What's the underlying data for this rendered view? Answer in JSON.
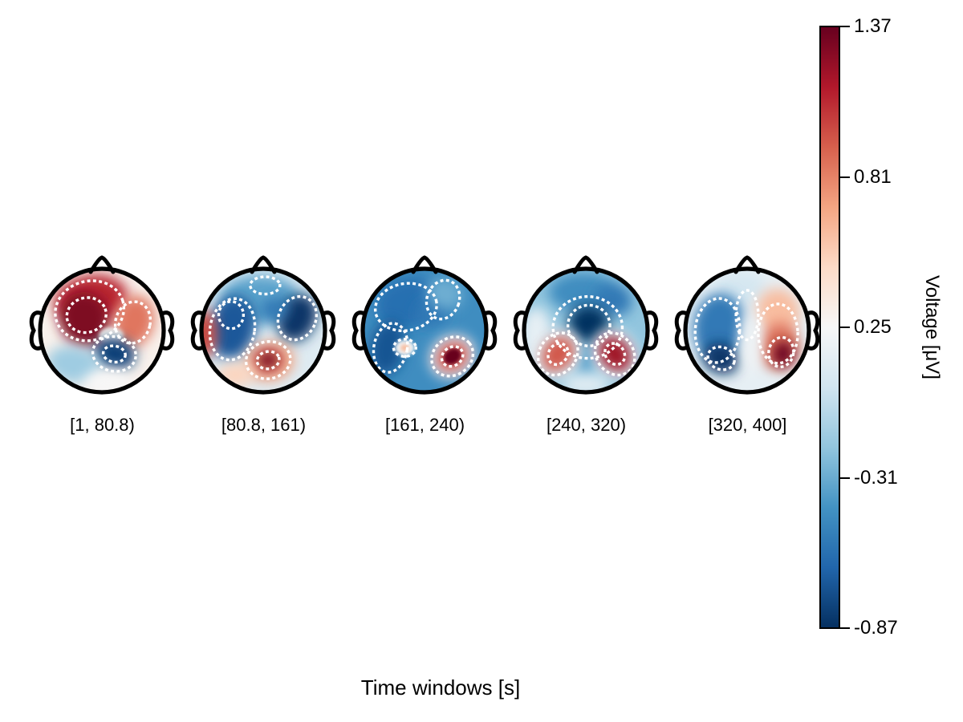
{
  "chart_data": {
    "type": "heatmap",
    "subtype": "eeg-topomap-time-windows",
    "xlabel": "Time windows [s]",
    "colorbar_label": "Voltage [μV]",
    "categories": [
      "[1, 80.8)",
      "[80.8, 161)",
      "[161, 240)",
      "[240, 320)",
      "[320, 400]"
    ],
    "value_range": [
      -0.87,
      1.37
    ],
    "colorbar_ticks": [
      "1.37",
      "0.81",
      "0.25",
      "-0.31",
      "-0.87"
    ],
    "colormap_name": "RdBu_r",
    "colormap_stops_low_to_high": [
      "#053061",
      "#2166ac",
      "#4393c3",
      "#92c5de",
      "#d1e5f0",
      "#f7f7f7",
      "#fddbc7",
      "#f4a582",
      "#d6604d",
      "#b2182b",
      "#67001f"
    ],
    "maps": [
      {
        "label": "[1, 80.8)",
        "base": 0.3,
        "blobs": [
          {
            "x": -0.18,
            "y": -0.5,
            "rx": 0.6,
            "ry": 0.4,
            "rot": -10,
            "v": 1.1
          },
          {
            "x": -0.28,
            "y": -0.18,
            "rx": 0.4,
            "ry": 0.45,
            "rot": -15,
            "v": 1.3
          },
          {
            "x": 0.52,
            "y": -0.15,
            "rx": 0.32,
            "ry": 0.42,
            "rot": 15,
            "v": 0.85
          },
          {
            "x": 0.15,
            "y": 0.08,
            "rx": 0.2,
            "ry": 0.13,
            "rot": 0,
            "v": 0.3
          },
          {
            "x": 0.2,
            "y": 0.38,
            "rx": 0.34,
            "ry": 0.26,
            "rot": 10,
            "v": -0.8
          },
          {
            "x": -0.45,
            "y": 0.55,
            "rx": 0.45,
            "ry": 0.3,
            "rot": 10,
            "v": -0.15
          },
          {
            "x": 0.1,
            "y": 0.85,
            "rx": 0.4,
            "ry": 0.22,
            "rot": 0,
            "v": 0.25
          }
        ],
        "contours": [
          {
            "x": -0.2,
            "y": -0.32,
            "rx": 0.56,
            "ry": 0.48,
            "rot": -15
          },
          {
            "x": -0.25,
            "y": -0.25,
            "rx": 0.32,
            "ry": 0.28,
            "rot": -15
          },
          {
            "x": 0.5,
            "y": -0.13,
            "rx": 0.28,
            "ry": 0.34,
            "rot": 15
          },
          {
            "x": 0.2,
            "y": 0.38,
            "rx": 0.35,
            "ry": 0.28,
            "rot": 10
          },
          {
            "x": 0.2,
            "y": 0.38,
            "rx": 0.18,
            "ry": 0.13,
            "rot": 10
          }
        ]
      },
      {
        "label": "[80.8, 161)",
        "base": 0.1,
        "blobs": [
          {
            "x": -0.05,
            "y": -0.5,
            "rx": 0.65,
            "ry": 0.4,
            "rot": 0,
            "v": -0.35
          },
          {
            "x": -0.5,
            "y": -0.05,
            "rx": 0.38,
            "ry": 0.52,
            "rot": 10,
            "v": -0.7
          },
          {
            "x": 0.55,
            "y": -0.2,
            "rx": 0.3,
            "ry": 0.4,
            "rot": 25,
            "v": -0.85
          },
          {
            "x": 0.18,
            "y": -0.35,
            "rx": 0.22,
            "ry": 0.18,
            "rot": 0,
            "v": -0.55
          },
          {
            "x": -0.95,
            "y": 0.05,
            "rx": 0.2,
            "ry": 0.38,
            "rot": 0,
            "v": 1.0
          },
          {
            "x": 0.1,
            "y": 0.5,
            "rx": 0.4,
            "ry": 0.32,
            "rot": -10,
            "v": 0.7
          },
          {
            "x": 0.08,
            "y": 0.48,
            "rx": 0.2,
            "ry": 0.16,
            "rot": -10,
            "v": 1.3
          },
          {
            "x": -0.45,
            "y": 0.72,
            "rx": 0.3,
            "ry": 0.2,
            "rot": 0,
            "v": 0.5
          }
        ],
        "contours": [
          {
            "x": -0.5,
            "y": -0.02,
            "rx": 0.36,
            "ry": 0.5,
            "rot": 10
          },
          {
            "x": -0.52,
            "y": -0.25,
            "rx": 0.2,
            "ry": 0.22,
            "rot": 0
          },
          {
            "x": 0.55,
            "y": -0.2,
            "rx": 0.3,
            "ry": 0.36,
            "rot": 25
          },
          {
            "x": 0.08,
            "y": 0.48,
            "rx": 0.36,
            "ry": 0.3,
            "rot": -10
          },
          {
            "x": 0.08,
            "y": 0.48,
            "rx": 0.18,
            "ry": 0.14,
            "rot": -10
          },
          {
            "x": 0.03,
            "y": -0.73,
            "rx": 0.24,
            "ry": 0.14,
            "rot": 0
          }
        ]
      },
      {
        "label": "[161, 240)",
        "base": -0.45,
        "blobs": [
          {
            "x": -0.25,
            "y": -0.45,
            "rx": 0.55,
            "ry": 0.4,
            "rot": -10,
            "v": -0.6
          },
          {
            "x": -0.6,
            "y": 0.28,
            "rx": 0.28,
            "ry": 0.45,
            "rot": 10,
            "v": -0.72
          },
          {
            "x": 0.12,
            "y": -0.28,
            "rx": 0.26,
            "ry": 0.2,
            "rot": 0,
            "v": -0.55
          },
          {
            "x": 0.33,
            "y": -0.6,
            "rx": 0.3,
            "ry": 0.25,
            "rot": 20,
            "v": -0.3
          },
          {
            "x": 0.45,
            "y": 0.42,
            "rx": 0.38,
            "ry": 0.33,
            "rot": -35,
            "v": 0.2
          },
          {
            "x": 0.45,
            "y": 0.42,
            "rx": 0.27,
            "ry": 0.22,
            "rot": -35,
            "v": 1.0
          },
          {
            "x": 0.45,
            "y": 0.42,
            "rx": 0.15,
            "ry": 0.12,
            "rot": -35,
            "v": 1.37
          },
          {
            "x": -0.32,
            "y": 0.28,
            "rx": 0.16,
            "ry": 0.13,
            "rot": 0,
            "v": 0.2
          },
          {
            "x": -0.32,
            "y": 0.28,
            "rx": 0.07,
            "ry": 0.06,
            "rot": 0,
            "v": 0.6
          }
        ],
        "contours": [
          {
            "x": -0.3,
            "y": -0.38,
            "rx": 0.5,
            "ry": 0.38,
            "rot": -10
          },
          {
            "x": -0.55,
            "y": 0.28,
            "rx": 0.27,
            "ry": 0.4,
            "rot": 10
          },
          {
            "x": 0.45,
            "y": 0.42,
            "rx": 0.35,
            "ry": 0.3,
            "rot": -35
          },
          {
            "x": 0.45,
            "y": 0.42,
            "rx": 0.18,
            "ry": 0.15,
            "rot": -35
          },
          {
            "x": -0.32,
            "y": 0.28,
            "rx": 0.18,
            "ry": 0.14,
            "rot": 0
          },
          {
            "x": 0.3,
            "y": -0.5,
            "rx": 0.26,
            "ry": 0.32,
            "rot": 20
          }
        ]
      },
      {
        "label": "[240, 320)",
        "base": -0.2,
        "blobs": [
          {
            "x": -0.05,
            "y": -0.62,
            "rx": 0.55,
            "ry": 0.32,
            "rot": 0,
            "v": -0.45
          },
          {
            "x": 0.45,
            "y": -0.5,
            "rx": 0.3,
            "ry": 0.25,
            "rot": 20,
            "v": -0.55
          },
          {
            "x": 0.05,
            "y": -0.08,
            "rx": 0.34,
            "ry": 0.33,
            "rot": 0,
            "v": -0.87
          },
          {
            "x": -0.8,
            "y": 0.1,
            "rx": 0.26,
            "ry": 0.48,
            "rot": 0,
            "v": 0.15
          },
          {
            "x": 0.0,
            "y": 0.48,
            "rx": 0.16,
            "ry": 0.28,
            "rot": 0,
            "v": -0.4
          },
          {
            "x": -0.45,
            "y": 0.38,
            "rx": 0.36,
            "ry": 0.42,
            "rot": 35,
            "v": 0.1
          },
          {
            "x": -0.45,
            "y": 0.38,
            "rx": 0.24,
            "ry": 0.3,
            "rot": 35,
            "v": 0.95
          },
          {
            "x": 0.47,
            "y": 0.38,
            "rx": 0.36,
            "ry": 0.42,
            "rot": -35,
            "v": 0.1
          },
          {
            "x": 0.47,
            "y": 0.38,
            "rx": 0.24,
            "ry": 0.3,
            "rot": -35,
            "v": 1.2
          },
          {
            "x": 0.0,
            "y": 0.88,
            "rx": 0.4,
            "ry": 0.2,
            "rot": 0,
            "v": 0.1
          }
        ],
        "contours": [
          {
            "x": 0.05,
            "y": -0.08,
            "rx": 0.34,
            "ry": 0.33,
            "rot": 0
          },
          {
            "x": 0.03,
            "y": -0.05,
            "rx": 0.56,
            "ry": 0.5,
            "rot": 0
          },
          {
            "x": -0.45,
            "y": 0.38,
            "rx": 0.3,
            "ry": 0.36,
            "rot": 35
          },
          {
            "x": 0.47,
            "y": 0.38,
            "rx": 0.3,
            "ry": 0.36,
            "rot": -35
          },
          {
            "x": -0.45,
            "y": 0.38,
            "rx": 0.15,
            "ry": 0.18,
            "rot": 35
          },
          {
            "x": 0.47,
            "y": 0.38,
            "rx": 0.15,
            "ry": 0.18,
            "rot": -35
          }
        ]
      },
      {
        "label": "[320, 400]",
        "base": 0.15,
        "blobs": [
          {
            "x": -0.1,
            "y": -0.7,
            "rx": 0.4,
            "ry": 0.25,
            "rot": 0,
            "v": 0.05
          },
          {
            "x": -0.45,
            "y": -0.05,
            "rx": 0.42,
            "ry": 0.55,
            "rot": 5,
            "v": -0.55
          },
          {
            "x": -0.42,
            "y": 0.45,
            "rx": 0.3,
            "ry": 0.25,
            "rot": 20,
            "v": -0.85
          },
          {
            "x": 0.5,
            "y": -0.3,
            "rx": 0.35,
            "ry": 0.38,
            "rot": -10,
            "v": 0.6
          },
          {
            "x": 0.52,
            "y": 0.25,
            "rx": 0.32,
            "ry": 0.38,
            "rot": 10,
            "v": 0.85
          },
          {
            "x": 0.58,
            "y": 0.38,
            "rx": 0.17,
            "ry": 0.22,
            "rot": 10,
            "v": 1.37
          },
          {
            "x": 0.05,
            "y": 0.2,
            "rx": 0.17,
            "ry": 0.5,
            "rot": 0,
            "v": 0.2
          }
        ],
        "contours": [
          {
            "x": -0.48,
            "y": 0.0,
            "rx": 0.36,
            "ry": 0.52,
            "rot": 5
          },
          {
            "x": -0.42,
            "y": 0.45,
            "rx": 0.22,
            "ry": 0.18,
            "rot": 20
          },
          {
            "x": 0.5,
            "y": 0.05,
            "rx": 0.32,
            "ry": 0.48,
            "rot": 0
          },
          {
            "x": 0.55,
            "y": 0.35,
            "rx": 0.2,
            "ry": 0.24,
            "rot": 10
          },
          {
            "x": 0.0,
            "y": -0.25,
            "rx": 0.18,
            "ry": 0.4,
            "rot": 0
          }
        ]
      }
    ]
  },
  "colors": {
    "background": "#ffffff",
    "head_outline": "#000000",
    "contour": "#ffffff",
    "text": "#000000"
  }
}
